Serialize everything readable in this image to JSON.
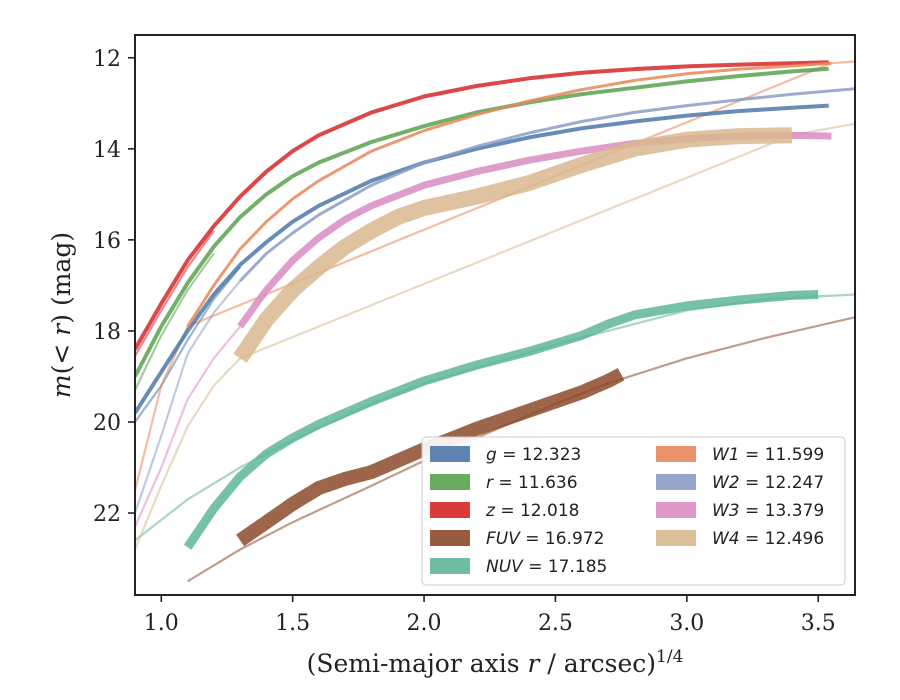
{
  "chart_data": {
    "type": "line",
    "xlabel": "(Semi-major axis r / arcsec)^{1/4}",
    "ylabel": "m(< r) (mag)",
    "xlim": [
      0.9,
      3.64
    ],
    "ylim": [
      23.8,
      11.5
    ],
    "y_inverted": true,
    "x_ticks": [
      "1.0",
      "1.5",
      "2.0",
      "2.5",
      "3.0",
      "3.5"
    ],
    "y_ticks": [
      "12",
      "14",
      "16",
      "18",
      "20",
      "22"
    ],
    "grid": false,
    "legend_position": "lower-right",
    "legend_columns": 2,
    "series": [
      {
        "name": "g = 12.323",
        "color": "#4c78a8",
        "data": [
          [
            0.9,
            19.8
          ],
          [
            1.0,
            18.9
          ],
          [
            1.1,
            18.0
          ],
          [
            1.2,
            17.2
          ],
          [
            1.3,
            16.55
          ],
          [
            1.4,
            16.05
          ],
          [
            1.5,
            15.6
          ],
          [
            1.6,
            15.25
          ],
          [
            1.8,
            14.7
          ],
          [
            2.0,
            14.3
          ],
          [
            2.2,
            14.0
          ],
          [
            2.4,
            13.75
          ],
          [
            2.6,
            13.55
          ],
          [
            2.8,
            13.4
          ],
          [
            3.0,
            13.27
          ],
          [
            3.2,
            13.17
          ],
          [
            3.4,
            13.1
          ],
          [
            3.54,
            13.05
          ]
        ],
        "faint": [
          [
            0.9,
            20.0
          ],
          [
            1.0,
            19.2
          ],
          [
            1.1,
            18.2
          ],
          [
            1.2,
            17.3
          ],
          [
            1.3,
            16.6
          ]
        ]
      },
      {
        "name": "r = 11.636",
        "color": "#59a14f",
        "data": [
          [
            0.9,
            19.0
          ],
          [
            1.0,
            17.9
          ],
          [
            1.1,
            16.95
          ],
          [
            1.2,
            16.15
          ],
          [
            1.3,
            15.5
          ],
          [
            1.4,
            15.0
          ],
          [
            1.5,
            14.6
          ],
          [
            1.6,
            14.3
          ],
          [
            1.8,
            13.85
          ],
          [
            2.0,
            13.5
          ],
          [
            2.2,
            13.2
          ],
          [
            2.4,
            12.98
          ],
          [
            2.6,
            12.8
          ],
          [
            2.8,
            12.66
          ],
          [
            3.0,
            12.52
          ],
          [
            3.2,
            12.4
          ],
          [
            3.4,
            12.3
          ],
          [
            3.54,
            12.24
          ]
        ],
        "faint": [
          [
            0.9,
            19.3
          ],
          [
            1.0,
            18.1
          ],
          [
            1.1,
            17.1
          ],
          [
            1.2,
            16.3
          ]
        ]
      },
      {
        "name": "z = 12.018",
        "color": "#d62728",
        "data": [
          [
            0.9,
            18.4
          ],
          [
            1.0,
            17.4
          ],
          [
            1.1,
            16.45
          ],
          [
            1.2,
            15.7
          ],
          [
            1.3,
            15.05
          ],
          [
            1.4,
            14.5
          ],
          [
            1.5,
            14.05
          ],
          [
            1.6,
            13.7
          ],
          [
            1.8,
            13.2
          ],
          [
            2.0,
            12.85
          ],
          [
            2.2,
            12.62
          ],
          [
            2.4,
            12.45
          ],
          [
            2.6,
            12.33
          ],
          [
            2.8,
            12.25
          ],
          [
            3.0,
            12.19
          ],
          [
            3.2,
            12.15
          ],
          [
            3.4,
            12.12
          ],
          [
            3.54,
            12.1
          ]
        ],
        "faint": [
          [
            0.9,
            18.55
          ],
          [
            1.0,
            17.55
          ],
          [
            1.1,
            16.6
          ],
          [
            1.2,
            15.8
          ]
        ]
      },
      {
        "name": "FUV = 16.972",
        "color": "#8c4a2a",
        "data": [
          [
            1.3,
            22.6
          ],
          [
            1.4,
            22.2
          ],
          [
            1.5,
            21.8
          ],
          [
            1.6,
            21.45
          ],
          [
            1.7,
            21.25
          ],
          [
            1.8,
            21.1
          ],
          [
            1.9,
            20.85
          ],
          [
            2.0,
            20.6
          ],
          [
            2.1,
            20.38
          ],
          [
            2.2,
            20.15
          ],
          [
            2.3,
            19.95
          ],
          [
            2.4,
            19.75
          ],
          [
            2.5,
            19.55
          ],
          [
            2.6,
            19.35
          ],
          [
            2.7,
            19.1
          ],
          [
            2.75,
            18.95
          ]
        ],
        "faint": [
          [
            1.1,
            23.5
          ],
          [
            1.3,
            22.8
          ],
          [
            1.5,
            22.2
          ],
          [
            1.8,
            21.4
          ],
          [
            2.0,
            20.85
          ],
          [
            2.3,
            20.1
          ],
          [
            2.5,
            19.6
          ],
          [
            2.7,
            19.15
          ],
          [
            3.0,
            18.6
          ],
          [
            3.3,
            18.15
          ],
          [
            3.64,
            17.7
          ]
        ]
      },
      {
        "name": "NUV = 17.185",
        "color": "#5fb59b",
        "data": [
          [
            1.1,
            22.75
          ],
          [
            1.2,
            21.9
          ],
          [
            1.3,
            21.2
          ],
          [
            1.4,
            20.7
          ],
          [
            1.5,
            20.35
          ],
          [
            1.6,
            20.05
          ],
          [
            1.8,
            19.55
          ],
          [
            2.0,
            19.1
          ],
          [
            2.2,
            18.75
          ],
          [
            2.4,
            18.45
          ],
          [
            2.6,
            18.1
          ],
          [
            2.7,
            17.85
          ],
          [
            2.8,
            17.65
          ],
          [
            3.0,
            17.45
          ],
          [
            3.2,
            17.32
          ],
          [
            3.4,
            17.22
          ],
          [
            3.5,
            17.2
          ]
        ],
        "faint": [
          [
            0.9,
            22.6
          ],
          [
            1.1,
            21.7
          ],
          [
            1.3,
            21.0
          ],
          [
            1.5,
            20.4
          ],
          [
            1.8,
            19.6
          ],
          [
            2.0,
            19.15
          ],
          [
            2.5,
            18.3
          ],
          [
            3.0,
            17.55
          ],
          [
            3.3,
            17.3
          ],
          [
            3.64,
            17.2
          ]
        ]
      },
      {
        "name": "W1 = 11.599",
        "color": "#e8875a",
        "data": [
          [
            1.1,
            17.9
          ],
          [
            1.2,
            17.0
          ],
          [
            1.3,
            16.2
          ],
          [
            1.4,
            15.6
          ],
          [
            1.5,
            15.1
          ],
          [
            1.6,
            14.7
          ],
          [
            1.8,
            14.05
          ],
          [
            2.0,
            13.6
          ],
          [
            2.2,
            13.25
          ],
          [
            2.4,
            12.95
          ],
          [
            2.6,
            12.7
          ],
          [
            2.8,
            12.5
          ],
          [
            3.0,
            12.35
          ],
          [
            3.2,
            12.25
          ],
          [
            3.4,
            12.18
          ],
          [
            3.55,
            12.12
          ]
        ],
        "faint": [
          [
            0.9,
            21.5
          ],
          [
            1.0,
            19.2
          ],
          [
            1.1,
            17.9
          ],
          [
            3.55,
            12.12
          ],
          [
            3.64,
            12.08
          ]
        ]
      },
      {
        "name": "W2 = 12.247",
        "color": "#8b9dc3",
        "data": [
          [
            1.3,
            16.9
          ],
          [
            1.4,
            16.3
          ],
          [
            1.5,
            15.85
          ],
          [
            1.6,
            15.45
          ],
          [
            1.8,
            14.8
          ],
          [
            2.0,
            14.3
          ],
          [
            2.2,
            13.95
          ],
          [
            2.4,
            13.65
          ],
          [
            2.6,
            13.4
          ],
          [
            2.8,
            13.2
          ],
          [
            3.0,
            13.05
          ],
          [
            3.2,
            12.92
          ],
          [
            3.4,
            12.8
          ],
          [
            3.64,
            12.68
          ]
        ],
        "faint": [
          [
            0.9,
            22.0
          ],
          [
            1.0,
            20.3
          ],
          [
            1.1,
            18.5
          ],
          [
            1.2,
            17.6
          ],
          [
            1.3,
            16.9
          ]
        ]
      },
      {
        "name": "W3 = 13.379",
        "color": "#d98cc2",
        "data": [
          [
            1.3,
            17.9
          ],
          [
            1.4,
            17.1
          ],
          [
            1.5,
            16.45
          ],
          [
            1.6,
            15.95
          ],
          [
            1.7,
            15.55
          ],
          [
            1.8,
            15.25
          ],
          [
            2.0,
            14.8
          ],
          [
            2.2,
            14.5
          ],
          [
            2.4,
            14.25
          ],
          [
            2.6,
            14.05
          ],
          [
            2.8,
            13.88
          ],
          [
            3.0,
            13.78
          ],
          [
            3.2,
            13.72
          ],
          [
            3.4,
            13.7
          ],
          [
            3.55,
            13.72
          ]
        ],
        "faint": [
          [
            0.9,
            22.3
          ],
          [
            1.0,
            21.0
          ],
          [
            1.1,
            19.5
          ],
          [
            1.2,
            18.6
          ],
          [
            1.3,
            17.9
          ]
        ]
      },
      {
        "name": "W4 = 12.496",
        "color": "#d9b98f",
        "data": [
          [
            1.3,
            18.6
          ],
          [
            1.4,
            17.75
          ],
          [
            1.5,
            17.1
          ],
          [
            1.6,
            16.6
          ],
          [
            1.7,
            16.15
          ],
          [
            1.8,
            15.8
          ],
          [
            1.9,
            15.5
          ],
          [
            2.0,
            15.3
          ],
          [
            2.2,
            15.05
          ],
          [
            2.4,
            14.75
          ],
          [
            2.6,
            14.35
          ],
          [
            2.8,
            14.0
          ],
          [
            3.0,
            13.8
          ],
          [
            3.2,
            13.72
          ],
          [
            3.4,
            13.7
          ]
        ],
        "faint": [
          [
            0.9,
            22.8
          ],
          [
            1.0,
            21.4
          ],
          [
            1.1,
            20.1
          ],
          [
            1.2,
            19.2
          ],
          [
            1.3,
            18.6
          ],
          [
            3.4,
            13.7
          ],
          [
            3.64,
            13.45
          ]
        ]
      }
    ],
    "legend_labels": [
      {
        "var": "g",
        "value": "12.323"
      },
      {
        "var": "r",
        "value": "11.636"
      },
      {
        "var": "z",
        "value": "12.018"
      },
      {
        "var": "FUV",
        "value": "16.972"
      },
      {
        "var": "NUV",
        "value": "17.185"
      },
      {
        "var": "W1",
        "value": "11.599"
      },
      {
        "var": "W2",
        "value": "12.247"
      },
      {
        "var": "W3",
        "value": "13.379"
      },
      {
        "var": "W4",
        "value": "12.496"
      }
    ]
  }
}
